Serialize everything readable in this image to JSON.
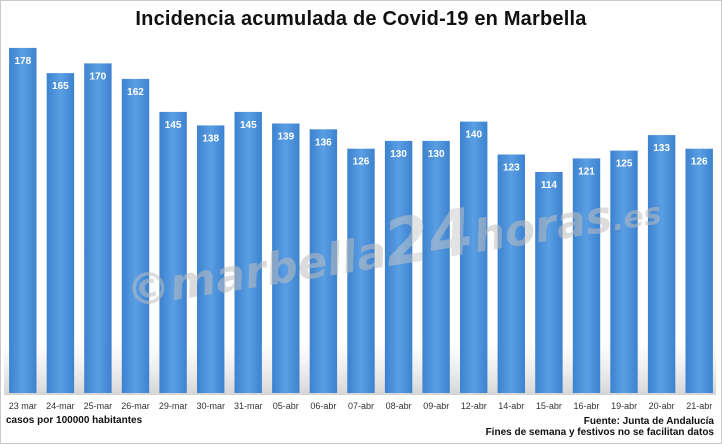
{
  "title": "Incidencia acumulada de Covid-19 en Marbella",
  "footer": {
    "units": "casos por 100000 habitantes",
    "source": "Fuente: Junta de Andalucía",
    "note": "Fines de semana y festivos no se facilitan datos"
  },
  "watermark": {
    "text": "©marbella24horas.es"
  },
  "colors": {
    "bar": "#4a90d9",
    "bar_highlight": "#6aaae6",
    "label": "#ffffff"
  },
  "chart_data": {
    "type": "bar",
    "title": "Incidencia acumulada de Covid-19 en Marbella",
    "xlabel": "",
    "ylabel": "",
    "ylim": [
      0,
      180
    ],
    "grid": false,
    "categories": [
      "23 mar",
      "24-mar",
      "25-mar",
      "26-mar",
      "29-mar",
      "30-mar",
      "31-mar",
      "05-abr",
      "06-abr",
      "07-abr",
      "08-abr",
      "09-abr",
      "12-abr",
      "14-abr",
      "15-abr",
      "16-abr",
      "19-abr",
      "20-abr",
      "21-abr"
    ],
    "values": [
      178,
      165,
      170,
      162,
      145,
      138,
      145,
      139,
      136,
      126,
      130,
      130,
      140,
      123,
      114,
      121,
      125,
      133,
      126
    ]
  }
}
